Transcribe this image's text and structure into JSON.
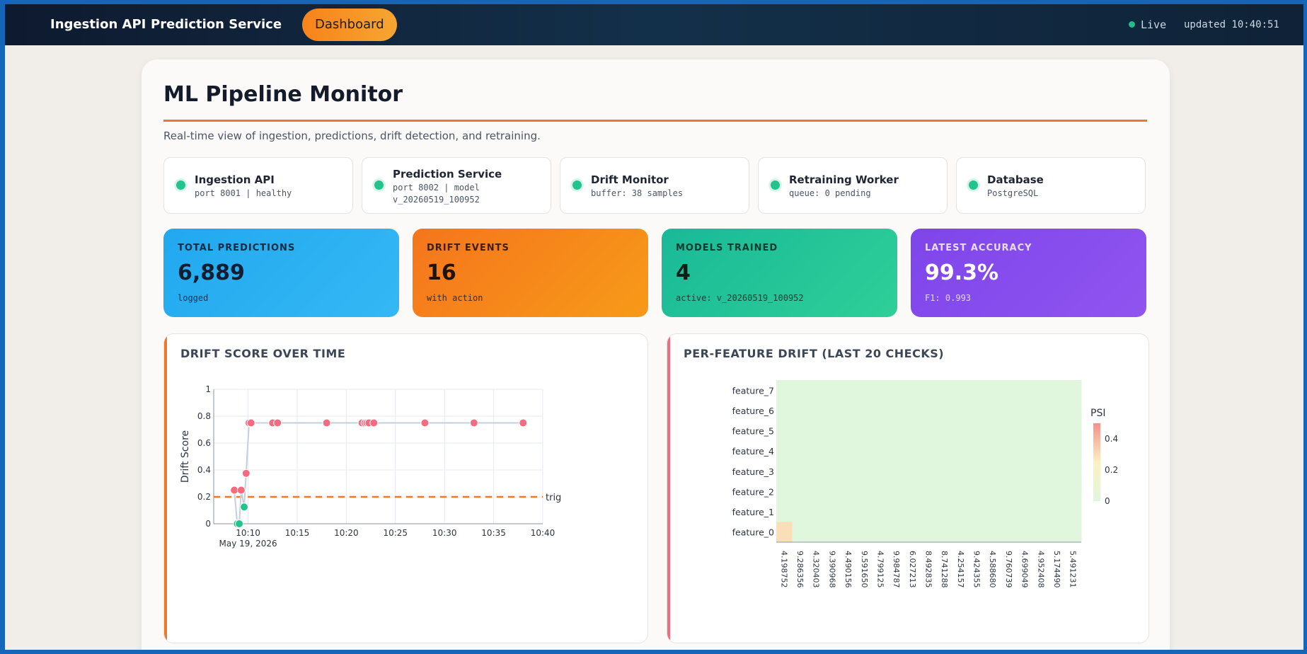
{
  "nav": {
    "items": [
      {
        "label": "Ingestion API"
      },
      {
        "label": "Prediction Service"
      },
      {
        "label": "Dashboard"
      }
    ],
    "live_label": "Live",
    "updated": "updated 10:40:51"
  },
  "page": {
    "title": "ML Pipeline Monitor",
    "subtitle": "Real-time view of ingestion, predictions, drift detection, and retraining."
  },
  "services": [
    {
      "name": "Ingestion API",
      "detail_1": "port 8001 | healthy",
      "detail_2": ""
    },
    {
      "name": "Prediction Service",
      "detail_1": "port 8002 | model",
      "detail_2": "v_20260519_100952"
    },
    {
      "name": "Drift Monitor",
      "detail_1": "buffer: 38 samples",
      "detail_2": ""
    },
    {
      "name": "Retraining Worker",
      "detail_1": "queue: 0 pending",
      "detail_2": ""
    },
    {
      "name": "Database",
      "detail_1": "PostgreSQL",
      "detail_2": ""
    }
  ],
  "stats": [
    {
      "label": "TOTAL PREDICTIONS",
      "value": "6,889",
      "sub": "logged"
    },
    {
      "label": "DRIFT EVENTS",
      "value": "16",
      "sub": "with action"
    },
    {
      "label": "MODELS TRAINED",
      "value": "4",
      "sub": "active: v_20260519_100952"
    },
    {
      "label": "LATEST ACCURACY",
      "value": "99.3%",
      "sub": "F1: 0.993"
    }
  ],
  "colors": {
    "accent_orange": "#f0782a",
    "status_green": "#22c38c",
    "drift_red": "#f26b7f",
    "line_gray": "#c5cfdc",
    "stat_blue": "#26aef0",
    "stat_orange": "#f7891c",
    "stat_teal": "#25c79e",
    "stat_purple": "#8a52ee"
  },
  "chart_data": [
    {
      "type": "scatter",
      "title": "DRIFT SCORE OVER TIME",
      "xlabel": "",
      "ylabel": "Drift Score",
      "x_ticks": [
        "10:10",
        "10:15",
        "10:20",
        "10:25",
        "10:30",
        "10:35",
        "10:40"
      ],
      "x_date_label": "May 19, 2026",
      "y_ticks": [
        "0",
        "0.2",
        "0.4",
        "0.6",
        "0.8",
        "1"
      ],
      "xlim": [
        "10:06:30",
        "10:40:00"
      ],
      "ylim": [
        0,
        1
      ],
      "threshold": {
        "value": 0.2,
        "label": "trig"
      },
      "grid": true,
      "series": [
        {
          "points": [
            {
              "x": "10:08:36",
              "y": 0.25,
              "flag": "drift"
            },
            {
              "x": "10:08:54",
              "y": 0,
              "flag": "ok"
            },
            {
              "x": "10:09:06",
              "y": 0,
              "flag": "ok"
            },
            {
              "x": "10:09:18",
              "y": 0.25,
              "flag": "drift"
            },
            {
              "x": "10:09:36",
              "y": 0.125,
              "flag": "ok"
            },
            {
              "x": "10:09:48",
              "y": 0.375,
              "flag": "drift"
            },
            {
              "x": "10:10:06",
              "y": 0.75,
              "flag": "drift"
            },
            {
              "x": "10:10:18",
              "y": 0.75,
              "flag": "drift"
            },
            {
              "x": "10:12:30",
              "y": 0.75,
              "flag": "drift"
            },
            {
              "x": "10:13:00",
              "y": 0.75,
              "flag": "drift"
            },
            {
              "x": "10:18:00",
              "y": 0.75,
              "flag": "drift"
            },
            {
              "x": "10:21:36",
              "y": 0.75,
              "flag": "drift"
            },
            {
              "x": "10:21:54",
              "y": 0.75,
              "flag": "drift"
            },
            {
              "x": "10:22:06",
              "y": 0.75,
              "flag": "drift"
            },
            {
              "x": "10:22:18",
              "y": 0.75,
              "flag": "drift"
            },
            {
              "x": "10:22:48",
              "y": 0.75,
              "flag": "drift"
            },
            {
              "x": "10:28:00",
              "y": 0.75,
              "flag": "drift"
            },
            {
              "x": "10:33:00",
              "y": 0.75,
              "flag": "drift"
            },
            {
              "x": "10:38:00",
              "y": 0.75,
              "flag": "drift"
            }
          ]
        }
      ]
    },
    {
      "type": "heatmap",
      "title": "PER-FEATURE DRIFT (LAST 20 CHECKS)",
      "colorbar_label": "PSI",
      "colorbar_ticks": [
        "0",
        "0.2",
        "0.4"
      ],
      "colorscale": [
        [
          0,
          "#dff7df"
        ],
        [
          0.5,
          "#fbf1c2"
        ],
        [
          1,
          "#f5918c"
        ]
      ],
      "zmax": 0.5,
      "rows": [
        "feature_7",
        "feature_6",
        "feature_5",
        "feature_4",
        "feature_3",
        "feature_2",
        "feature_1",
        "feature_0"
      ],
      "columns": [
        "4.198752",
        "9.286356",
        "4.320403",
        "9.390968",
        "4.490156",
        "9.591650",
        "4.799125",
        "9.984787",
        "6.027213",
        "8.492835",
        "8.741288",
        "4.254157",
        "9.424355",
        "4.588680",
        "9.760739",
        "4.699049",
        "4.952408",
        "5.174490",
        "5.491231"
      ],
      "base_value": 0.02,
      "highlight_cells": [
        {
          "row": "feature_0",
          "column": "4.198752",
          "value": 0.3
        }
      ]
    }
  ]
}
